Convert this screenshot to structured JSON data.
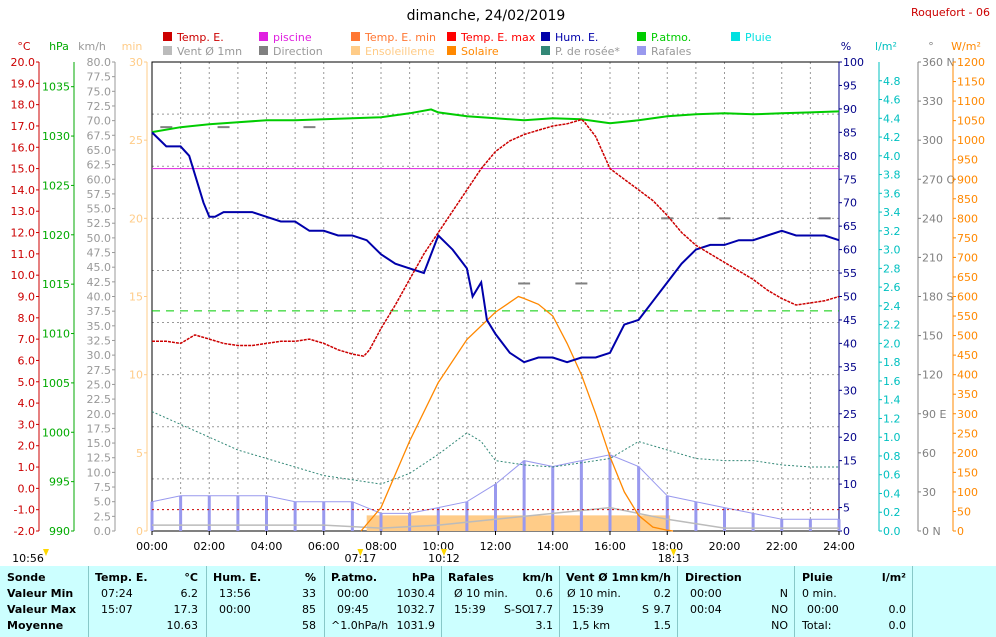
{
  "header": {
    "title": "dimanche, 24/02/2019",
    "station": "Roquefort - 06"
  },
  "legend": [
    {
      "label": "Temp. E.",
      "color": "#cc0000"
    },
    {
      "label": "piscine",
      "color": "#e020e0"
    },
    {
      "label": "Temp. E. min",
      "color": "#ff7733"
    },
    {
      "label": "Temp. E. max",
      "color": "#ff0000"
    },
    {
      "label": "Hum. E.",
      "color": "#0000aa"
    },
    {
      "label": "P.atmo.",
      "color": "#00cc00"
    },
    {
      "label": "Pluie",
      "color": "#00e0e0"
    },
    {
      "label": "Vent Ø 1mn",
      "color": "#bbbbbb"
    },
    {
      "label": "Direction",
      "color": "#808080"
    },
    {
      "label": "Ensoleilleme",
      "color": "#ffcc88"
    },
    {
      "label": "Solaire",
      "color": "#ff8800"
    },
    {
      "label": "P. de rosée*",
      "color": "#338877"
    },
    {
      "label": "Rafales",
      "color": "#9999ee"
    }
  ],
  "axes": {
    "units": {
      "temp": "°C",
      "press": "hPa",
      "wind": "km/h",
      "sun": "min",
      "hum": "%",
      "rain": "l/m²",
      "dir": "°",
      "solar": "W/m²"
    },
    "temp_ticks": [
      "20.0",
      "19.0",
      "18.0",
      "17.0",
      "16.0",
      "15.0",
      "14.0",
      "13.0",
      "12.0",
      "11.0",
      "10.0",
      "9.0",
      "8.0",
      "7.0",
      "6.0",
      "5.0",
      "4.0",
      "3.0",
      "2.0",
      "1.0",
      "0.0",
      "-1.0",
      "-2.0"
    ],
    "press_ticks": [
      "1035",
      "1030",
      "1025",
      "1020",
      "1015",
      "1010",
      "1005",
      "1000",
      "995",
      "990"
    ],
    "wind_ticks": [
      "80.0",
      "77.5",
      "75.0",
      "72.5",
      "70.0",
      "67.5",
      "65.0",
      "62.5",
      "60.0",
      "57.5",
      "55.0",
      "52.5",
      "50.0",
      "47.5",
      "45.0",
      "42.5",
      "40.0",
      "37.5",
      "35.0",
      "32.5",
      "30.0",
      "27.5",
      "25.0",
      "22.5",
      "20.0",
      "17.5",
      "15.0",
      "12.5",
      "10.0",
      "7.5",
      "5.0",
      "2.5",
      "0.0"
    ],
    "sun_ticks": [
      "30",
      "25",
      "20",
      "15",
      "10",
      "5",
      "0"
    ],
    "hum_ticks": [
      "100",
      "95",
      "90",
      "85",
      "80",
      "75",
      "70",
      "65",
      "60",
      "55",
      "50",
      "45",
      "40",
      "35",
      "30",
      "25",
      "20",
      "15",
      "10",
      "5",
      "0"
    ],
    "rain_ticks": [
      "4.8",
      "4.6",
      "4.4",
      "4.2",
      "4.0",
      "3.8",
      "3.6",
      "3.4",
      "3.2",
      "3.0",
      "2.8",
      "2.6",
      "2.4",
      "2.2",
      "2.0",
      "1.8",
      "1.6",
      "1.4",
      "1.2",
      "1.0",
      "0.8",
      "0.6",
      "0.4",
      "0.2",
      "0.0"
    ],
    "dir_ticks": [
      "360 N",
      "330",
      "300",
      "270 O",
      "240",
      "210",
      "180 S",
      "150",
      "120",
      "90 E",
      "60",
      "30",
      "0 N"
    ],
    "solar_ticks": [
      "1200",
      "1150",
      "1100",
      "1050",
      "1000",
      "950",
      "900",
      "850",
      "800",
      "750",
      "700",
      "650",
      "600",
      "550",
      "500",
      "450",
      "400",
      "350",
      "300",
      "250",
      "200",
      "150",
      "100",
      "50",
      "0"
    ],
    "time_ticks": [
      "00:00",
      "02:00",
      "04:00",
      "06:00",
      "08:00",
      "10:00",
      "12:00",
      "14:00",
      "16:00",
      "18:00",
      "20:00",
      "22:00",
      "24:00"
    ],
    "markers": [
      "10:56",
      "07:17",
      "10:12",
      "18:13"
    ]
  },
  "chart_data": {
    "type": "line",
    "title": "dimanche, 24/02/2019",
    "x_unit": "hours",
    "xlim": [
      0,
      24
    ],
    "series": [
      {
        "name": "Temp. E.",
        "unit": "°C",
        "x": [
          0,
          0.5,
          1.0,
          1.5,
          2.0,
          2.5,
          3.0,
          3.5,
          4.0,
          4.5,
          5.0,
          5.5,
          6.0,
          6.5,
          7.0,
          7.4,
          7.6,
          8.0,
          8.5,
          9.0,
          9.5,
          10.0,
          10.5,
          11.0,
          11.5,
          12.0,
          12.5,
          13.0,
          13.5,
          14.0,
          14.5,
          15.0,
          15.1,
          15.5,
          16.0,
          16.5,
          17.0,
          17.5,
          18.0,
          18.5,
          19.0,
          19.5,
          20.0,
          20.5,
          21.0,
          21.5,
          22.0,
          22.5,
          23.0,
          23.5,
          24.0
        ],
        "values": [
          6.9,
          6.9,
          6.8,
          7.2,
          7.0,
          6.8,
          6.7,
          6.7,
          6.8,
          6.9,
          6.9,
          7.0,
          6.8,
          6.5,
          6.3,
          6.2,
          6.5,
          7.5,
          8.6,
          9.8,
          11.0,
          12.0,
          13.0,
          14.0,
          15.0,
          15.8,
          16.3,
          16.6,
          16.8,
          17.0,
          17.1,
          17.3,
          17.2,
          16.5,
          15.0,
          14.5,
          14.0,
          13.5,
          12.8,
          12.0,
          11.4,
          11.0,
          10.6,
          10.2,
          9.8,
          9.3,
          8.9,
          8.6,
          8.7,
          8.8,
          9.0
        ]
      },
      {
        "name": "piscine",
        "unit": "°C",
        "x": [
          0,
          24
        ],
        "values": [
          15.0,
          15.0
        ]
      },
      {
        "name": "Hum. E.",
        "unit": "%",
        "x": [
          0,
          0.5,
          1.0,
          1.3,
          1.6,
          1.8,
          2.0,
          2.2,
          2.5,
          3.0,
          3.5,
          4.0,
          4.5,
          5.0,
          5.5,
          6.0,
          6.5,
          7.0,
          7.5,
          8.0,
          8.5,
          9.0,
          9.5,
          10.0,
          10.5,
          11.0,
          11.2,
          11.5,
          11.7,
          12.0,
          12.5,
          13.0,
          13.5,
          14.0,
          14.5,
          15.0,
          15.5,
          16.0,
          16.5,
          17.0,
          17.5,
          18.0,
          18.5,
          19.0,
          19.5,
          20.0,
          20.5,
          21.0,
          21.5,
          22.0,
          22.5,
          23.0,
          23.5,
          24.0
        ],
        "values": [
          85,
          82,
          82,
          80,
          74,
          70,
          67,
          67,
          68,
          68,
          68,
          67,
          66,
          66,
          64,
          64,
          63,
          63,
          62,
          59,
          57,
          56,
          55,
          63,
          60,
          56,
          50,
          53,
          45,
          42,
          38,
          36,
          37,
          37,
          36,
          37,
          37,
          38,
          44,
          45,
          49,
          53,
          57,
          60,
          61,
          61,
          62,
          62,
          63,
          64,
          63,
          63,
          63,
          62
        ]
      },
      {
        "name": "P.atmo.",
        "unit": "hPa",
        "x": [
          0,
          1,
          2,
          3,
          4,
          5,
          6,
          7,
          8,
          9,
          9.75,
          10,
          11,
          12,
          13,
          14,
          15,
          16,
          17,
          18,
          19,
          20,
          21,
          22,
          23,
          24
        ],
        "values": [
          1030.4,
          1030.9,
          1031.2,
          1031.4,
          1031.6,
          1031.6,
          1031.7,
          1031.8,
          1031.9,
          1032.3,
          1032.7,
          1032.4,
          1032.0,
          1031.8,
          1031.6,
          1031.8,
          1031.7,
          1031.3,
          1031.6,
          1032.0,
          1032.2,
          1032.3,
          1032.2,
          1032.3,
          1032.4,
          1032.5
        ]
      },
      {
        "name": "P. de rosée*",
        "unit": "°C",
        "x": [
          0,
          1,
          2,
          3,
          4,
          5,
          6,
          7,
          8,
          9,
          10,
          11,
          11.5,
          12,
          13,
          14,
          15,
          16,
          17,
          18,
          19,
          20,
          21,
          22,
          23,
          24
        ],
        "values": [
          3.6,
          3.0,
          2.4,
          1.8,
          1.4,
          1.0,
          0.6,
          0.4,
          0.2,
          0.7,
          1.6,
          2.6,
          2.2,
          1.3,
          1.1,
          1.0,
          1.2,
          1.4,
          2.2,
          1.8,
          1.4,
          1.3,
          1.3,
          1.1,
          1.0,
          1.0
        ]
      },
      {
        "name": "Solaire",
        "unit": "W/m²",
        "x": [
          7.3,
          8,
          9,
          10,
          11,
          12,
          12.8,
          13,
          13.5,
          14,
          14.5,
          15,
          15.5,
          16,
          16.5,
          17,
          17.5,
          18,
          18.2
        ],
        "values": [
          0,
          60,
          230,
          380,
          490,
          560,
          600,
          595,
          580,
          550,
          480,
          400,
          300,
          190,
          100,
          40,
          10,
          2,
          0
        ]
      },
      {
        "name": "Rafales",
        "unit": "km/h",
        "x": [
          0,
          1,
          2,
          3,
          4,
          5,
          6,
          7,
          8,
          9,
          10,
          11,
          12,
          13,
          14,
          15,
          16,
          17,
          18,
          19,
          20,
          21,
          22,
          23,
          24
        ],
        "values": [
          5,
          6,
          6,
          6,
          6,
          5,
          5,
          5,
          3,
          3,
          4,
          5,
          8,
          12,
          11,
          12,
          13,
          11,
          6,
          5,
          4,
          3,
          2,
          2,
          2
        ]
      },
      {
        "name": "Vent Ø 1mn",
        "unit": "km/h",
        "x": [
          0,
          2,
          4,
          6,
          8,
          10,
          12,
          14,
          16,
          18,
          20,
          22,
          24
        ],
        "values": [
          1,
          1,
          1,
          1,
          0.5,
          1,
          2,
          3,
          4,
          2,
          0.5,
          0.5,
          0.5
        ]
      },
      {
        "name": "Direction",
        "unit": "°",
        "x": [
          0.5,
          2.5,
          5.5,
          13.0,
          15.0,
          18.0,
          20.0,
          23.5
        ],
        "values": [
          310,
          310,
          310,
          190,
          190,
          240,
          240,
          240
        ]
      },
      {
        "name": "Ensoleilleme",
        "unit": "min",
        "x": [
          7.5,
          18.1
        ],
        "values": [
          1,
          1
        ]
      }
    ]
  },
  "stats": {
    "headers": {
      "sonde": "Sonde",
      "temp": "Temp. E.",
      "temp_unit": "°C",
      "hum": "Hum. E.",
      "hum_unit": "%",
      "press": "P.atmo.",
      "press_unit": "hPa",
      "gust": "Rafales",
      "gust_unit": "km/h",
      "wind": "Vent Ø 1mn",
      "wind_unit": "km/h",
      "dir": "Direction",
      "rain": "Pluie",
      "rain_unit": "l/m²"
    },
    "row_labels": {
      "min": "Valeur Min",
      "max": "Valeur Max",
      "avg": "Moyenne"
    },
    "temp": {
      "min_time": "07:24",
      "min": "6.2",
      "max_time": "15:07",
      "max": "17.3",
      "avg": "10.63"
    },
    "hum": {
      "min_time": "13:56",
      "min": "33",
      "max_time": "00:00",
      "max": "85",
      "avg": "58"
    },
    "press": {
      "min_time": "00:00",
      "min": "1030.4",
      "max_time": "09:45",
      "max": "1032.7",
      "avg_label": "^1.0hPa/h",
      "avg": "1031.9"
    },
    "gust": {
      "min_label": "Ø 10 min.",
      "min": "0.6",
      "max_time": "15:39",
      "max_dir": "S-SO",
      "max": "17.7",
      "avg": "3.1"
    },
    "wind": {
      "min_label": "Ø 10 min.",
      "min": "0.2",
      "max_time": "15:39",
      "max_dir": "S",
      "max": "9.7",
      "avg_label": "1,5 km",
      "avg": "1.5"
    },
    "dir": {
      "min_time": "00:00",
      "min": "N",
      "max_time": "00:04",
      "max": "NO",
      "avg": "NO"
    },
    "rain": {
      "min": "0 min.",
      "max_time": "00:00",
      "max": "0.0",
      "avg_label": "Total:",
      "avg": "0.0"
    }
  }
}
